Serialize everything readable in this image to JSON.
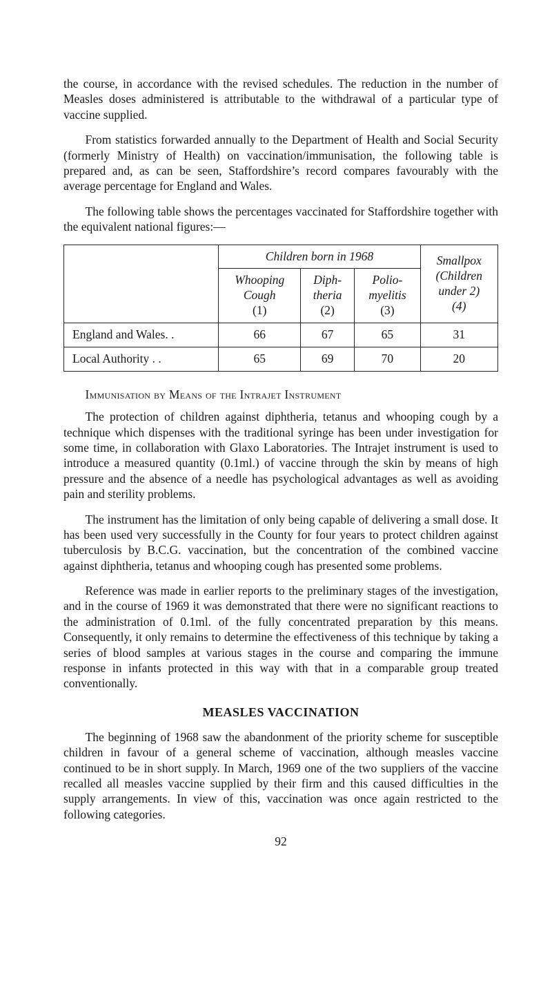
{
  "paragraphs": {
    "p1": "the course, in accordance with the revised schedules. The reduction in the number of Measles doses administered is attributable to the with­drawal of a particular type of vaccine supplied.",
    "p2": "From statistics forwarded annually to the Department of Health and Social Security (formerly Ministry of Health) on vaccination/immunisa­tion, the following table is prepared and, as can be seen, Staffordshire’s record compares favourably with the average percentage for England and Wales.",
    "p3": "The following table shows the percentages vaccinated for Stafford­shire together with the equivalent national figures:—",
    "sub1": "Immunisation by Means of the Intrajet Instrument",
    "p4": "The protection of children against diphtheria, tetanus and whooping cough by a technique which dispenses with the traditional syringe has been under investigation for some time, in collaboration with Glaxo Labora­tories. The Intrajet instrument is used to introduce a measured quantity (0.1ml.) of vaccine through the skin by means of high pressure and the absence of a needle has psychological advantages as well as avoiding pain and sterility problems.",
    "p5": "The instrument has the limitation of only being capable of delivering a small dose. It has been used very successfully in the County for four years to protect children against tuberculosis by B.C.G. vaccination, but the concentration of the combined vaccine against diphtheria, tetanus and whooping cough has presented some problems.",
    "p6": "Reference was made in earlier reports to the preliminary stages of the investigation, and in the course of 1969 it was demonstrated that there were no significant reactions to the administration of 0.1ml. of the fully con­centrated preparation by this means. Consequently, it only remains to determine the effectiveness of this technique by taking a series of blood samples at various stages in the course and comparing the immune response in infants protected in this way with that in a comparable group treated conventionally.",
    "title2": "MEASLES VACCINATION",
    "p7": "The beginning of 1968 saw the abandonment of the priority scheme for susceptible children in favour of a general scheme of vaccination, although measles vaccine continued to be in short supply. In March, 1969 one of the two suppliers of the vaccine recalled all measles vaccine supplied by their firm and this caused difficulties in the supply arrangements. In view of this, vaccination was once again restricted to the following categories."
  },
  "table": {
    "group_header": "Children born in 1968",
    "col_smallpox": "Smallpox (Children under 2) (4)",
    "cols": {
      "whooping": "Whooping Cough (1)",
      "diphtheria": "Diph­theria (2)",
      "polio": "Polio­myelitis (3)"
    },
    "rows": [
      {
        "label": "England and Wales. .",
        "c1": "66",
        "c2": "67",
        "c3": "65",
        "c4": "31"
      },
      {
        "label": "Local Authority     . .",
        "c1": "65",
        "c2": "69",
        "c3": "70",
        "c4": "20"
      }
    ],
    "border_color": "#222222",
    "font_size": 17.5
  },
  "page_number": "92",
  "colors": {
    "background": "#ffffff",
    "text": "#1a1a1a"
  }
}
